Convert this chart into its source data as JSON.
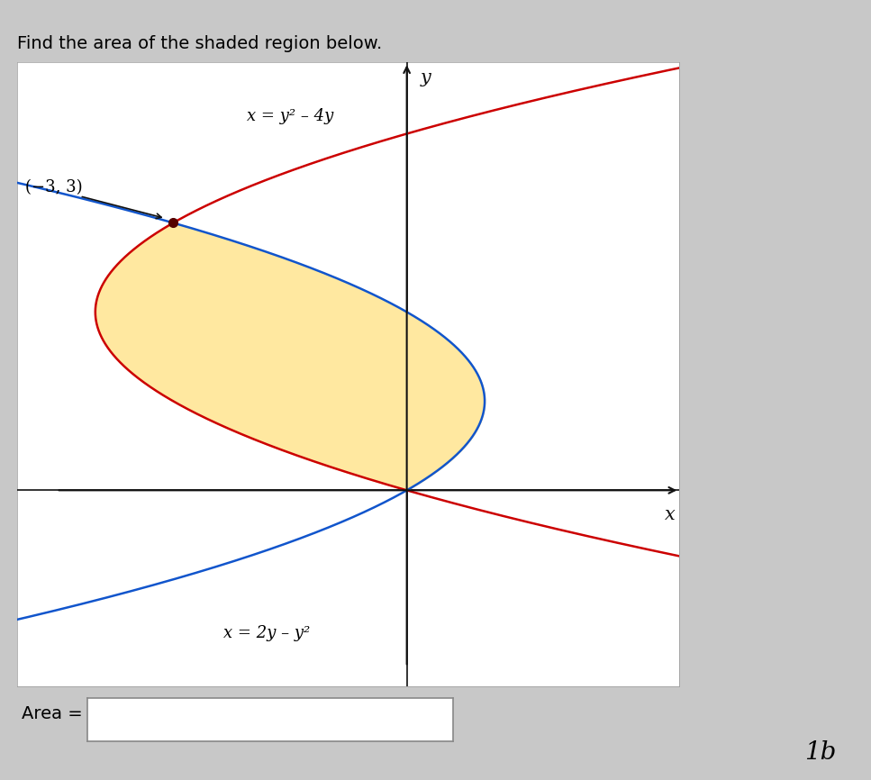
{
  "title": "Find the area of the shaded region below.",
  "curve1_label": "x = y² – 4y",
  "curve2_label": "x = 2y – y²",
  "point_label": "(−3, 3)",
  "area_label": "Area =",
  "xlabel": "x",
  "ylabel": "y",
  "y_range": [
    -2.2,
    4.8
  ],
  "x_range": [
    -5.0,
    3.5
  ],
  "shaded_color": "#FFE8A0",
  "shaded_alpha": 1.0,
  "curve1_color": "#CC0000",
  "curve2_color": "#1155CC",
  "axis_color": "#111111",
  "plot_bg_color": "#FFFFFF",
  "outer_bg_color": "#C8C8C8",
  "plot_box_color": "#FFFFFF",
  "fig_width": 9.67,
  "fig_height": 8.66,
  "dpi": 100
}
